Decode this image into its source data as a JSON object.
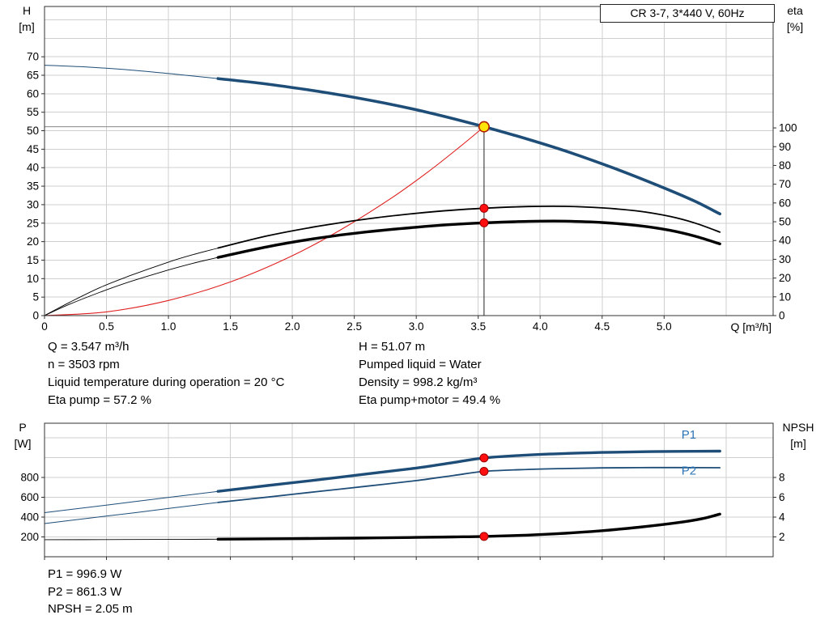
{
  "title_box": "CR 3-7, 3*440 V, 60Hz",
  "colors": {
    "curve_blue": "#1e4d78",
    "curve_black": "#000000",
    "curve_red": "#e02020",
    "label_blue": "#2e74b5",
    "grid": "#cfcfcf",
    "frame": "#303030",
    "duty_vline": "#222222",
    "duty_hline": "#888888",
    "marker_red_fill": "#ff0f0f",
    "marker_red_stroke": "#990000",
    "duty_fill": "#ffe60a",
    "duty_stroke": "#b22000",
    "text": "#000000"
  },
  "annotations": {
    "top_left": [
      "Q = 3.547 m³/h",
      "n = 3503 rpm",
      "Liquid temperature during operation = 20 °C",
      "Eta pump = 57.2 %"
    ],
    "top_right": [
      "H = 51.07 m",
      "Pumped liquid = Water",
      "Density = 998.2 kg/m³",
      "Eta pump+motor = 49.4 %"
    ],
    "bottom": [
      "P1 = 996.9 W",
      "P2 = 861.3 W",
      "NPSH = 2.05 m"
    ]
  },
  "chart_data": [
    {
      "type": "line",
      "title": "CR 3-7, 3*440 V, 60Hz",
      "x_axis": {
        "label": "Q [m³/h]",
        "min": 0,
        "max": 5.88,
        "grid_step": 0.5,
        "show_tick_labels": true,
        "ticks": [
          [
            0,
            "0"
          ],
          [
            0.5,
            "0.5"
          ],
          [
            1,
            "1.0"
          ],
          [
            1.5,
            "1.5"
          ],
          [
            2,
            "2.0"
          ],
          [
            2.5,
            "2.5"
          ],
          [
            3,
            "3.0"
          ],
          [
            3.5,
            "3.5"
          ],
          [
            4,
            "4.0"
          ],
          [
            4.5,
            "4.5"
          ],
          [
            5,
            "5.0"
          ]
        ]
      },
      "left_axis": {
        "label": [
          "H",
          "[m]"
        ],
        "min": 0,
        "max": 83.6,
        "grid_step": 5,
        "ticks": [
          0,
          5,
          10,
          15,
          20,
          25,
          30,
          35,
          40,
          45,
          50,
          55,
          60,
          65,
          70
        ]
      },
      "right_axis": {
        "label": [
          "eta",
          "[%]"
        ],
        "min": 0,
        "max": 164.7,
        "ticks": [
          0,
          10,
          20,
          30,
          40,
          50,
          60,
          70,
          80,
          90,
          100
        ]
      },
      "duty_lines": {
        "q": 3.547,
        "h": 51.07
      },
      "series": [
        {
          "name": "head-curve-lead",
          "axis": "left",
          "color": "#1e4d78",
          "width": 1,
          "points": [
            [
              0,
              67.7
            ],
            [
              0.35,
              67.2
            ],
            [
              0.7,
              66.4
            ],
            [
              1.05,
              65.3
            ],
            [
              1.4,
              64.1
            ]
          ]
        },
        {
          "name": "head-curve",
          "axis": "left",
          "color": "#1e4d78",
          "width": 3.6,
          "points": [
            [
              1.4,
              64.1
            ],
            [
              1.75,
              62.8
            ],
            [
              2.1,
              61.2
            ],
            [
              2.45,
              59.3
            ],
            [
              2.8,
              57.1
            ],
            [
              3.15,
              54.5
            ],
            [
              3.547,
              51.07
            ],
            [
              3.9,
              47.7
            ],
            [
              4.25,
              44.0
            ],
            [
              4.6,
              39.8
            ],
            [
              4.95,
              35.2
            ],
            [
              5.25,
              30.9
            ],
            [
              5.45,
              27.5
            ]
          ]
        },
        {
          "name": "system-curve",
          "axis": "left",
          "color": "#e02020",
          "width": 1.1,
          "points": [
            [
              0,
              0
            ],
            [
              0.5,
              1.0
            ],
            [
              1.0,
              4.1
            ],
            [
              1.5,
              9.1
            ],
            [
              2.0,
              16.2
            ],
            [
              2.4,
              23.4
            ],
            [
              2.8,
              31.8
            ],
            [
              3.1,
              39.0
            ],
            [
              3.35,
              45.6
            ],
            [
              3.547,
              51.07
            ]
          ]
        },
        {
          "name": "eta-pump-curve-lead",
          "axis": "right",
          "color": "#000000",
          "width": 0.9,
          "points": [
            [
              0,
              0
            ],
            [
              0.2,
              7
            ],
            [
              0.45,
              15
            ],
            [
              0.7,
              21.5
            ],
            [
              1.0,
              28.5
            ],
            [
              1.2,
              32.5
            ],
            [
              1.4,
              36
            ]
          ]
        },
        {
          "name": "eta-pump-curve",
          "axis": "right",
          "color": "#000000",
          "width": 1.8,
          "points": [
            [
              1.4,
              36
            ],
            [
              1.8,
              42.5
            ],
            [
              2.2,
              47.5
            ],
            [
              2.6,
              51.5
            ],
            [
              3.0,
              54.5
            ],
            [
              3.3,
              56.2
            ],
            [
              3.547,
              57.2
            ],
            [
              3.9,
              58.1
            ],
            [
              4.2,
              58.2
            ],
            [
              4.5,
              57.4
            ],
            [
              4.8,
              55.6
            ],
            [
              5.05,
              52.8
            ],
            [
              5.25,
              49.3
            ],
            [
              5.45,
              44.5
            ]
          ]
        },
        {
          "name": "eta-pump-motor-curve-lead",
          "axis": "right",
          "color": "#000000",
          "width": 0.9,
          "points": [
            [
              0,
              0
            ],
            [
              0.2,
              6
            ],
            [
              0.45,
              12.5
            ],
            [
              0.7,
              18.3
            ],
            [
              1.0,
              24.3
            ],
            [
              1.2,
              27.9
            ],
            [
              1.4,
              31
            ]
          ]
        },
        {
          "name": "eta-pump-motor-curve",
          "axis": "right",
          "color": "#000000",
          "width": 3.4,
          "points": [
            [
              1.4,
              31
            ],
            [
              1.8,
              36.7
            ],
            [
              2.2,
              41.2
            ],
            [
              2.6,
              44.6
            ],
            [
              3.0,
              47.1
            ],
            [
              3.3,
              48.6
            ],
            [
              3.547,
              49.4
            ],
            [
              3.9,
              50.2
            ],
            [
              4.2,
              50.3
            ],
            [
              4.5,
              49.6
            ],
            [
              4.8,
              47.9
            ],
            [
              5.05,
              45.4
            ],
            [
              5.25,
              42.3
            ],
            [
              5.45,
              38.2
            ]
          ]
        }
      ],
      "markers": [
        {
          "name": "duty-point-marker",
          "q": 3.547,
          "v": 51.07,
          "axis": "left",
          "style": "duty"
        },
        {
          "name": "eta-pump-duty-dot",
          "q": 3.547,
          "v": 57.2,
          "axis": "right",
          "style": "dot"
        },
        {
          "name": "eta-pump-motor-duty-dot",
          "q": 3.547,
          "v": 49.4,
          "axis": "right",
          "style": "dot"
        }
      ],
      "labels": []
    },
    {
      "type": "line",
      "title": "",
      "x_axis": {
        "label": "",
        "min": 0,
        "max": 5.88,
        "grid_step": 0.5,
        "show_tick_labels": false,
        "ticks": [
          [
            0,
            "0"
          ],
          [
            0.5,
            "0.5"
          ],
          [
            1,
            "1.0"
          ],
          [
            1.5,
            "1.5"
          ],
          [
            2,
            "2.0"
          ],
          [
            2.5,
            "2.5"
          ],
          [
            3,
            "3.0"
          ],
          [
            3.5,
            "3.5"
          ],
          [
            4,
            "4.0"
          ],
          [
            4.5,
            "4.5"
          ],
          [
            5,
            "5.0"
          ]
        ]
      },
      "left_axis": {
        "label": [
          "P",
          "[W]"
        ],
        "min": 0,
        "max": 1347,
        "grid_step": 200,
        "ticks": [
          200,
          400,
          600,
          800
        ]
      },
      "right_axis": {
        "label": [
          "NPSH",
          "[m]"
        ],
        "min": 0,
        "max": 13.47,
        "ticks": [
          2,
          4,
          6,
          8
        ]
      },
      "series": [
        {
          "name": "p1-curve-lead",
          "axis": "left",
          "color": "#1e4d78",
          "width": 1,
          "points": [
            [
              0,
              445
            ],
            [
              0.35,
              498
            ],
            [
              0.7,
              552
            ],
            [
              1.05,
              606
            ],
            [
              1.4,
              660
            ]
          ]
        },
        {
          "name": "p1-curve",
          "axis": "left",
          "color": "#1e4d78",
          "width": 3.4,
          "points": [
            [
              1.4,
              660
            ],
            [
              1.8,
              718
            ],
            [
              2.2,
              775
            ],
            [
              2.6,
              835
            ],
            [
              3.0,
              895
            ],
            [
              3.3,
              950
            ],
            [
              3.547,
              997
            ],
            [
              3.9,
              1026
            ],
            [
              4.2,
              1042
            ],
            [
              4.5,
              1052
            ],
            [
              4.8,
              1059
            ],
            [
              5.1,
              1063
            ],
            [
              5.45,
              1065
            ]
          ]
        },
        {
          "name": "p2-curve-lead",
          "axis": "left",
          "color": "#1e4d78",
          "width": 1,
          "points": [
            [
              0,
              335
            ],
            [
              0.35,
              388
            ],
            [
              0.7,
              440
            ],
            [
              1.05,
              495
            ],
            [
              1.4,
              548
            ]
          ]
        },
        {
          "name": "p2-curve",
          "axis": "left",
          "color": "#1e4d78",
          "width": 1.8,
          "points": [
            [
              1.4,
              548
            ],
            [
              1.8,
              602
            ],
            [
              2.2,
              657
            ],
            [
              2.6,
              712
            ],
            [
              3.0,
              768
            ],
            [
              3.3,
              820
            ],
            [
              3.547,
              861
            ],
            [
              3.9,
              881
            ],
            [
              4.2,
              890
            ],
            [
              4.5,
              896
            ],
            [
              4.8,
              899
            ],
            [
              5.1,
              900
            ],
            [
              5.45,
              898
            ]
          ]
        },
        {
          "name": "npsh-curve-lead",
          "axis": "right",
          "color": "#000000",
          "width": 0.9,
          "points": [
            [
              0,
              1.72
            ],
            [
              0.5,
              1.73
            ],
            [
              1.0,
              1.75
            ],
            [
              1.4,
              1.77
            ]
          ]
        },
        {
          "name": "npsh-curve",
          "axis": "right",
          "color": "#000000",
          "width": 3.4,
          "points": [
            [
              1.4,
              1.77
            ],
            [
              2.0,
              1.82
            ],
            [
              2.5,
              1.88
            ],
            [
              3.0,
              1.95
            ],
            [
              3.3,
              2.0
            ],
            [
              3.547,
              2.05
            ],
            [
              3.9,
              2.18
            ],
            [
              4.2,
              2.37
            ],
            [
              4.5,
              2.63
            ],
            [
              4.8,
              2.98
            ],
            [
              5.1,
              3.42
            ],
            [
              5.3,
              3.82
            ],
            [
              5.45,
              4.3
            ]
          ]
        }
      ],
      "markers": [
        {
          "name": "p1-duty-dot",
          "q": 3.547,
          "v": 996.9,
          "axis": "left",
          "style": "dot"
        },
        {
          "name": "p2-duty-dot",
          "q": 3.547,
          "v": 861.3,
          "axis": "left",
          "style": "dot"
        },
        {
          "name": "npsh-duty-dot",
          "q": 3.547,
          "v": 2.05,
          "axis": "right",
          "style": "dot"
        }
      ],
      "labels": [
        {
          "name": "p1-curve-label",
          "text": "P1",
          "q": 5.2,
          "v": 1190,
          "axis": "left",
          "color": "#2e74b5"
        },
        {
          "name": "p2-curve-label",
          "text": "P2",
          "q": 5.2,
          "v": 830,
          "axis": "left",
          "color": "#2e74b5"
        }
      ]
    }
  ]
}
